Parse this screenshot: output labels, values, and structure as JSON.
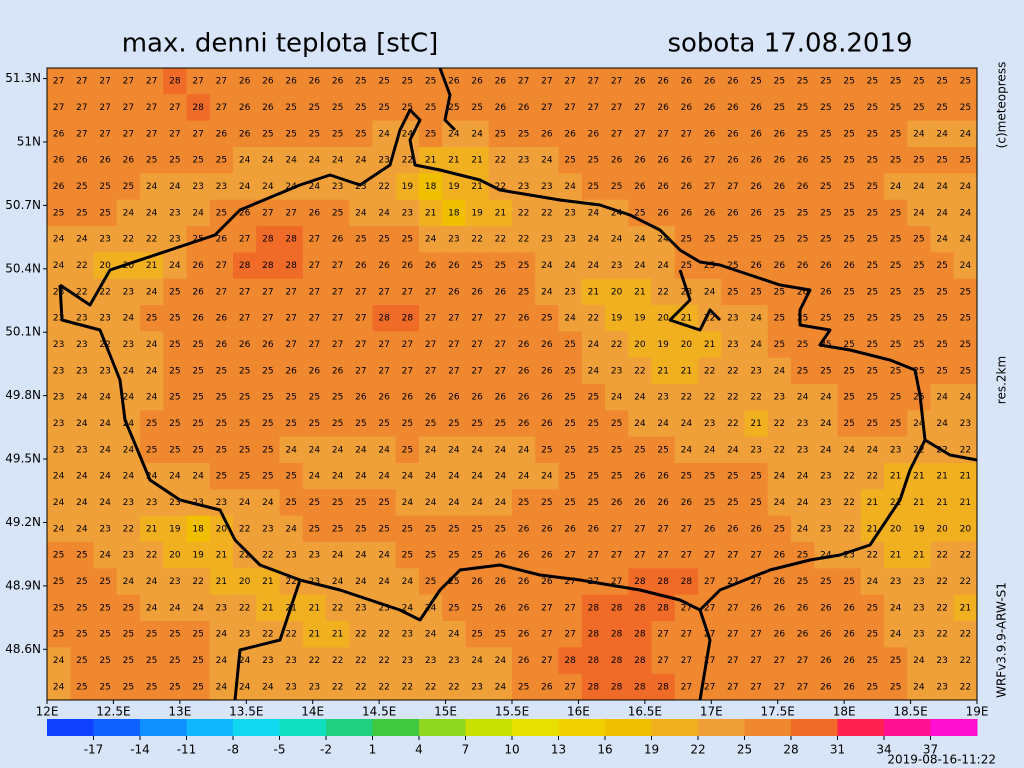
{
  "title": "max. denni teplota [stC]",
  "date": "sobota 17.08.2019",
  "credits": [
    "(c)meteopress",
    "res.2km",
    "WRFv3.9.9-ARW-S1"
  ],
  "timestamp": "2019-08-16-11:22",
  "map": {
    "xlim": [
      12,
      19
    ],
    "ylim": [
      48.36,
      51.35
    ],
    "xticks": [
      {
        "value": 12,
        "label": "12E"
      },
      {
        "value": 12.5,
        "label": "12.5E"
      },
      {
        "value": 13,
        "label": "13E"
      },
      {
        "value": 13.5,
        "label": "13.5E"
      },
      {
        "value": 14,
        "label": "14E"
      },
      {
        "value": 14.5,
        "label": "14.5E"
      },
      {
        "value": 15,
        "label": "15E"
      },
      {
        "value": 15.5,
        "label": "15.5E"
      },
      {
        "value": 16,
        "label": "16E"
      },
      {
        "value": 16.5,
        "label": "16.5E"
      },
      {
        "value": 17,
        "label": "17E"
      },
      {
        "value": 17.5,
        "label": "17.5E"
      },
      {
        "value": 18,
        "label": "18E"
      },
      {
        "value": 18.5,
        "label": "18.5E"
      },
      {
        "value": 19,
        "label": "19E"
      }
    ],
    "yticks": [
      {
        "value": 51.3,
        "label": "51.3N"
      },
      {
        "value": 51,
        "label": "51N"
      },
      {
        "value": 50.7,
        "label": "50.7N"
      },
      {
        "value": 50.4,
        "label": "50.4N"
      },
      {
        "value": 50.1,
        "label": "50.1N"
      },
      {
        "value": 49.8,
        "label": "49.8N"
      },
      {
        "value": 49.5,
        "label": "49.5N"
      },
      {
        "value": 49.2,
        "label": "49.2N"
      },
      {
        "value": 48.9,
        "label": "48.9N"
      },
      {
        "value": 48.6,
        "label": "48.6N"
      }
    ],
    "values": [
      [
        27,
        27,
        27,
        27,
        27,
        28,
        27,
        27,
        26,
        26,
        26,
        26,
        26,
        25,
        25,
        25,
        25,
        26,
        26,
        26,
        27,
        27,
        27,
        27,
        27,
        26,
        26,
        26,
        26,
        26,
        25,
        25,
        25,
        25,
        25,
        25,
        25,
        25,
        25,
        25
      ],
      [
        27,
        27,
        27,
        27,
        27,
        27,
        28,
        27,
        26,
        26,
        25,
        25,
        25,
        25,
        25,
        25,
        25,
        25,
        25,
        26,
        26,
        27,
        27,
        27,
        27,
        27,
        26,
        26,
        26,
        26,
        26,
        25,
        25,
        25,
        25,
        25,
        25,
        25,
        25,
        25
      ],
      [
        26,
        27,
        27,
        27,
        27,
        27,
        27,
        26,
        26,
        25,
        25,
        25,
        25,
        25,
        24,
        24,
        25,
        24,
        24,
        25,
        25,
        26,
        26,
        26,
        27,
        27,
        27,
        27,
        26,
        26,
        26,
        26,
        25,
        25,
        25,
        25,
        25,
        24,
        24,
        24
      ],
      [
        26,
        26,
        26,
        26,
        25,
        25,
        25,
        25,
        24,
        24,
        24,
        24,
        24,
        24,
        23,
        22,
        21,
        21,
        21,
        22,
        23,
        24,
        25,
        25,
        26,
        26,
        26,
        26,
        27,
        26,
        26,
        26,
        26,
        25,
        25,
        25,
        25,
        25,
        25,
        25
      ],
      [
        26,
        25,
        25,
        25,
        24,
        24,
        23,
        23,
        24,
        24,
        24,
        24,
        23,
        23,
        22,
        19,
        18,
        19,
        21,
        22,
        23,
        23,
        24,
        25,
        25,
        26,
        26,
        26,
        27,
        27,
        26,
        26,
        26,
        25,
        25,
        25,
        24,
        24,
        24,
        24
      ],
      [
        25,
        25,
        25,
        24,
        24,
        23,
        24,
        25,
        26,
        27,
        27,
        26,
        25,
        24,
        24,
        23,
        21,
        18,
        19,
        21,
        22,
        22,
        23,
        24,
        24,
        25,
        26,
        26,
        26,
        26,
        26,
        25,
        25,
        25,
        25,
        25,
        25,
        24,
        24,
        24
      ],
      [
        24,
        24,
        23,
        22,
        22,
        23,
        25,
        26,
        27,
        28,
        28,
        27,
        26,
        25,
        25,
        25,
        24,
        23,
        22,
        22,
        22,
        23,
        23,
        24,
        24,
        24,
        24,
        25,
        25,
        25,
        25,
        25,
        25,
        25,
        25,
        25,
        25,
        25,
        24,
        24
      ],
      [
        24,
        22,
        20,
        20,
        21,
        24,
        26,
        27,
        28,
        28,
        28,
        27,
        27,
        26,
        26,
        26,
        26,
        26,
        25,
        25,
        25,
        24,
        24,
        24,
        23,
        24,
        24,
        25,
        25,
        25,
        26,
        26,
        26,
        26,
        26,
        25,
        25,
        25,
        25,
        24
      ],
      [
        23,
        22,
        22,
        23,
        24,
        25,
        26,
        27,
        27,
        27,
        27,
        27,
        27,
        27,
        27,
        27,
        27,
        26,
        26,
        26,
        25,
        24,
        23,
        21,
        20,
        21,
        22,
        23,
        24,
        25,
        25,
        25,
        26,
        26,
        25,
        25,
        25,
        25,
        25,
        25
      ],
      [
        23,
        23,
        23,
        24,
        25,
        25,
        26,
        26,
        27,
        27,
        27,
        27,
        27,
        27,
        28,
        28,
        27,
        27,
        27,
        27,
        26,
        25,
        24,
        22,
        19,
        19,
        20,
        21,
        22,
        23,
        24,
        25,
        25,
        25,
        25,
        25,
        25,
        25,
        25,
        25
      ],
      [
        23,
        23,
        22,
        23,
        24,
        25,
        25,
        26,
        26,
        26,
        27,
        27,
        27,
        27,
        27,
        27,
        27,
        27,
        27,
        27,
        26,
        26,
        25,
        24,
        22,
        20,
        19,
        20,
        21,
        23,
        24,
        25,
        25,
        25,
        25,
        25,
        25,
        25,
        25,
        25
      ],
      [
        23,
        23,
        23,
        24,
        24,
        25,
        25,
        25,
        25,
        25,
        26,
        26,
        26,
        27,
        27,
        27,
        27,
        27,
        27,
        27,
        26,
        26,
        25,
        24,
        23,
        22,
        21,
        21,
        22,
        22,
        23,
        24,
        25,
        25,
        25,
        25,
        25,
        25,
        25,
        25
      ],
      [
        23,
        24,
        24,
        24,
        24,
        25,
        25,
        25,
        25,
        25,
        25,
        25,
        25,
        26,
        26,
        26,
        26,
        26,
        26,
        26,
        26,
        26,
        25,
        25,
        24,
        24,
        23,
        22,
        22,
        22,
        22,
        23,
        24,
        24,
        25,
        25,
        25,
        25,
        24,
        24
      ],
      [
        23,
        24,
        24,
        24,
        25,
        25,
        25,
        25,
        25,
        25,
        25,
        25,
        25,
        25,
        25,
        25,
        25,
        25,
        25,
        25,
        26,
        26,
        25,
        25,
        25,
        24,
        24,
        24,
        23,
        22,
        21,
        22,
        23,
        24,
        25,
        25,
        25,
        24,
        24,
        23
      ],
      [
        23,
        23,
        24,
        24,
        25,
        25,
        25,
        25,
        25,
        25,
        24,
        24,
        24,
        24,
        24,
        25,
        24,
        24,
        24,
        24,
        24,
        25,
        25,
        25,
        25,
        25,
        25,
        24,
        24,
        24,
        23,
        22,
        23,
        24,
        24,
        24,
        23,
        22,
        22,
        22
      ],
      [
        24,
        24,
        24,
        24,
        24,
        24,
        24,
        25,
        25,
        25,
        25,
        24,
        24,
        24,
        24,
        24,
        24,
        24,
        24,
        24,
        24,
        24,
        25,
        25,
        25,
        26,
        26,
        25,
        25,
        25,
        25,
        24,
        24,
        23,
        22,
        22,
        21,
        21,
        21,
        21
      ],
      [
        24,
        24,
        24,
        23,
        23,
        23,
        23,
        23,
        24,
        24,
        25,
        25,
        25,
        25,
        25,
        24,
        24,
        24,
        24,
        24,
        25,
        25,
        25,
        25,
        26,
        26,
        26,
        26,
        25,
        25,
        25,
        24,
        24,
        23,
        22,
        21,
        21,
        21,
        21,
        21
      ],
      [
        24,
        24,
        23,
        22,
        21,
        19,
        18,
        20,
        22,
        23,
        24,
        25,
        25,
        25,
        25,
        25,
        25,
        25,
        25,
        25,
        26,
        26,
        26,
        26,
        27,
        27,
        27,
        27,
        26,
        26,
        26,
        25,
        24,
        23,
        22,
        21,
        20,
        19,
        20,
        20
      ],
      [
        25,
        25,
        24,
        23,
        22,
        20,
        19,
        21,
        22,
        22,
        23,
        23,
        24,
        24,
        24,
        25,
        25,
        25,
        25,
        26,
        26,
        26,
        27,
        27,
        27,
        27,
        27,
        27,
        27,
        27,
        27,
        26,
        25,
        24,
        23,
        22,
        21,
        21,
        22,
        22
      ],
      [
        25,
        25,
        25,
        24,
        24,
        23,
        22,
        21,
        20,
        21,
        22,
        23,
        24,
        24,
        24,
        24,
        25,
        25,
        26,
        26,
        26,
        26,
        27,
        27,
        27,
        28,
        28,
        28,
        27,
        27,
        27,
        26,
        25,
        25,
        25,
        24,
        23,
        23,
        22,
        22
      ],
      [
        25,
        25,
        25,
        25,
        24,
        24,
        24,
        23,
        22,
        21,
        21,
        21,
        22,
        23,
        23,
        24,
        24,
        25,
        25,
        26,
        26,
        27,
        27,
        28,
        28,
        28,
        28,
        27,
        27,
        27,
        26,
        26,
        26,
        26,
        26,
        25,
        24,
        23,
        22,
        21
      ],
      [
        25,
        25,
        25,
        25,
        25,
        25,
        25,
        24,
        23,
        22,
        22,
        21,
        21,
        22,
        22,
        23,
        24,
        24,
        25,
        25,
        26,
        27,
        27,
        28,
        28,
        28,
        27,
        27,
        27,
        27,
        27,
        26,
        26,
        26,
        26,
        25,
        24,
        23,
        22,
        22
      ],
      [
        24,
        25,
        25,
        25,
        25,
        25,
        25,
        24,
        24,
        23,
        23,
        22,
        22,
        22,
        22,
        23,
        23,
        23,
        24,
        24,
        26,
        27,
        28,
        28,
        28,
        28,
        27,
        27,
        27,
        27,
        27,
        27,
        27,
        26,
        26,
        25,
        25,
        24,
        23,
        22
      ],
      [
        24,
        25,
        25,
        25,
        25,
        25,
        25,
        24,
        24,
        24,
        23,
        23,
        22,
        22,
        22,
        22,
        22,
        22,
        23,
        24,
        25,
        26,
        27,
        28,
        28,
        28,
        28,
        27,
        27,
        27,
        27,
        27,
        27,
        26,
        26,
        25,
        25,
        24,
        23,
        22
      ]
    ]
  },
  "colorbar": {
    "lim": [
      -20,
      40
    ],
    "ticks": [
      -17,
      -14,
      -11,
      -8,
      -5,
      -2,
      1,
      4,
      7,
      10,
      13,
      16,
      19,
      22,
      25,
      28,
      31,
      34,
      37
    ],
    "colors": [
      "#1040ff",
      "#1060ff",
      "#1090ff",
      "#10b8ff",
      "#10d8f0",
      "#10e0c0",
      "#20d080",
      "#40c840",
      "#90d820",
      "#c8e000",
      "#e8e000",
      "#f0d000",
      "#f0c000",
      "#f0b020",
      "#f0a038",
      "#f08830",
      "#f06a28",
      "#ff2050",
      "#ff1090",
      "#ff10d0"
    ]
  }
}
